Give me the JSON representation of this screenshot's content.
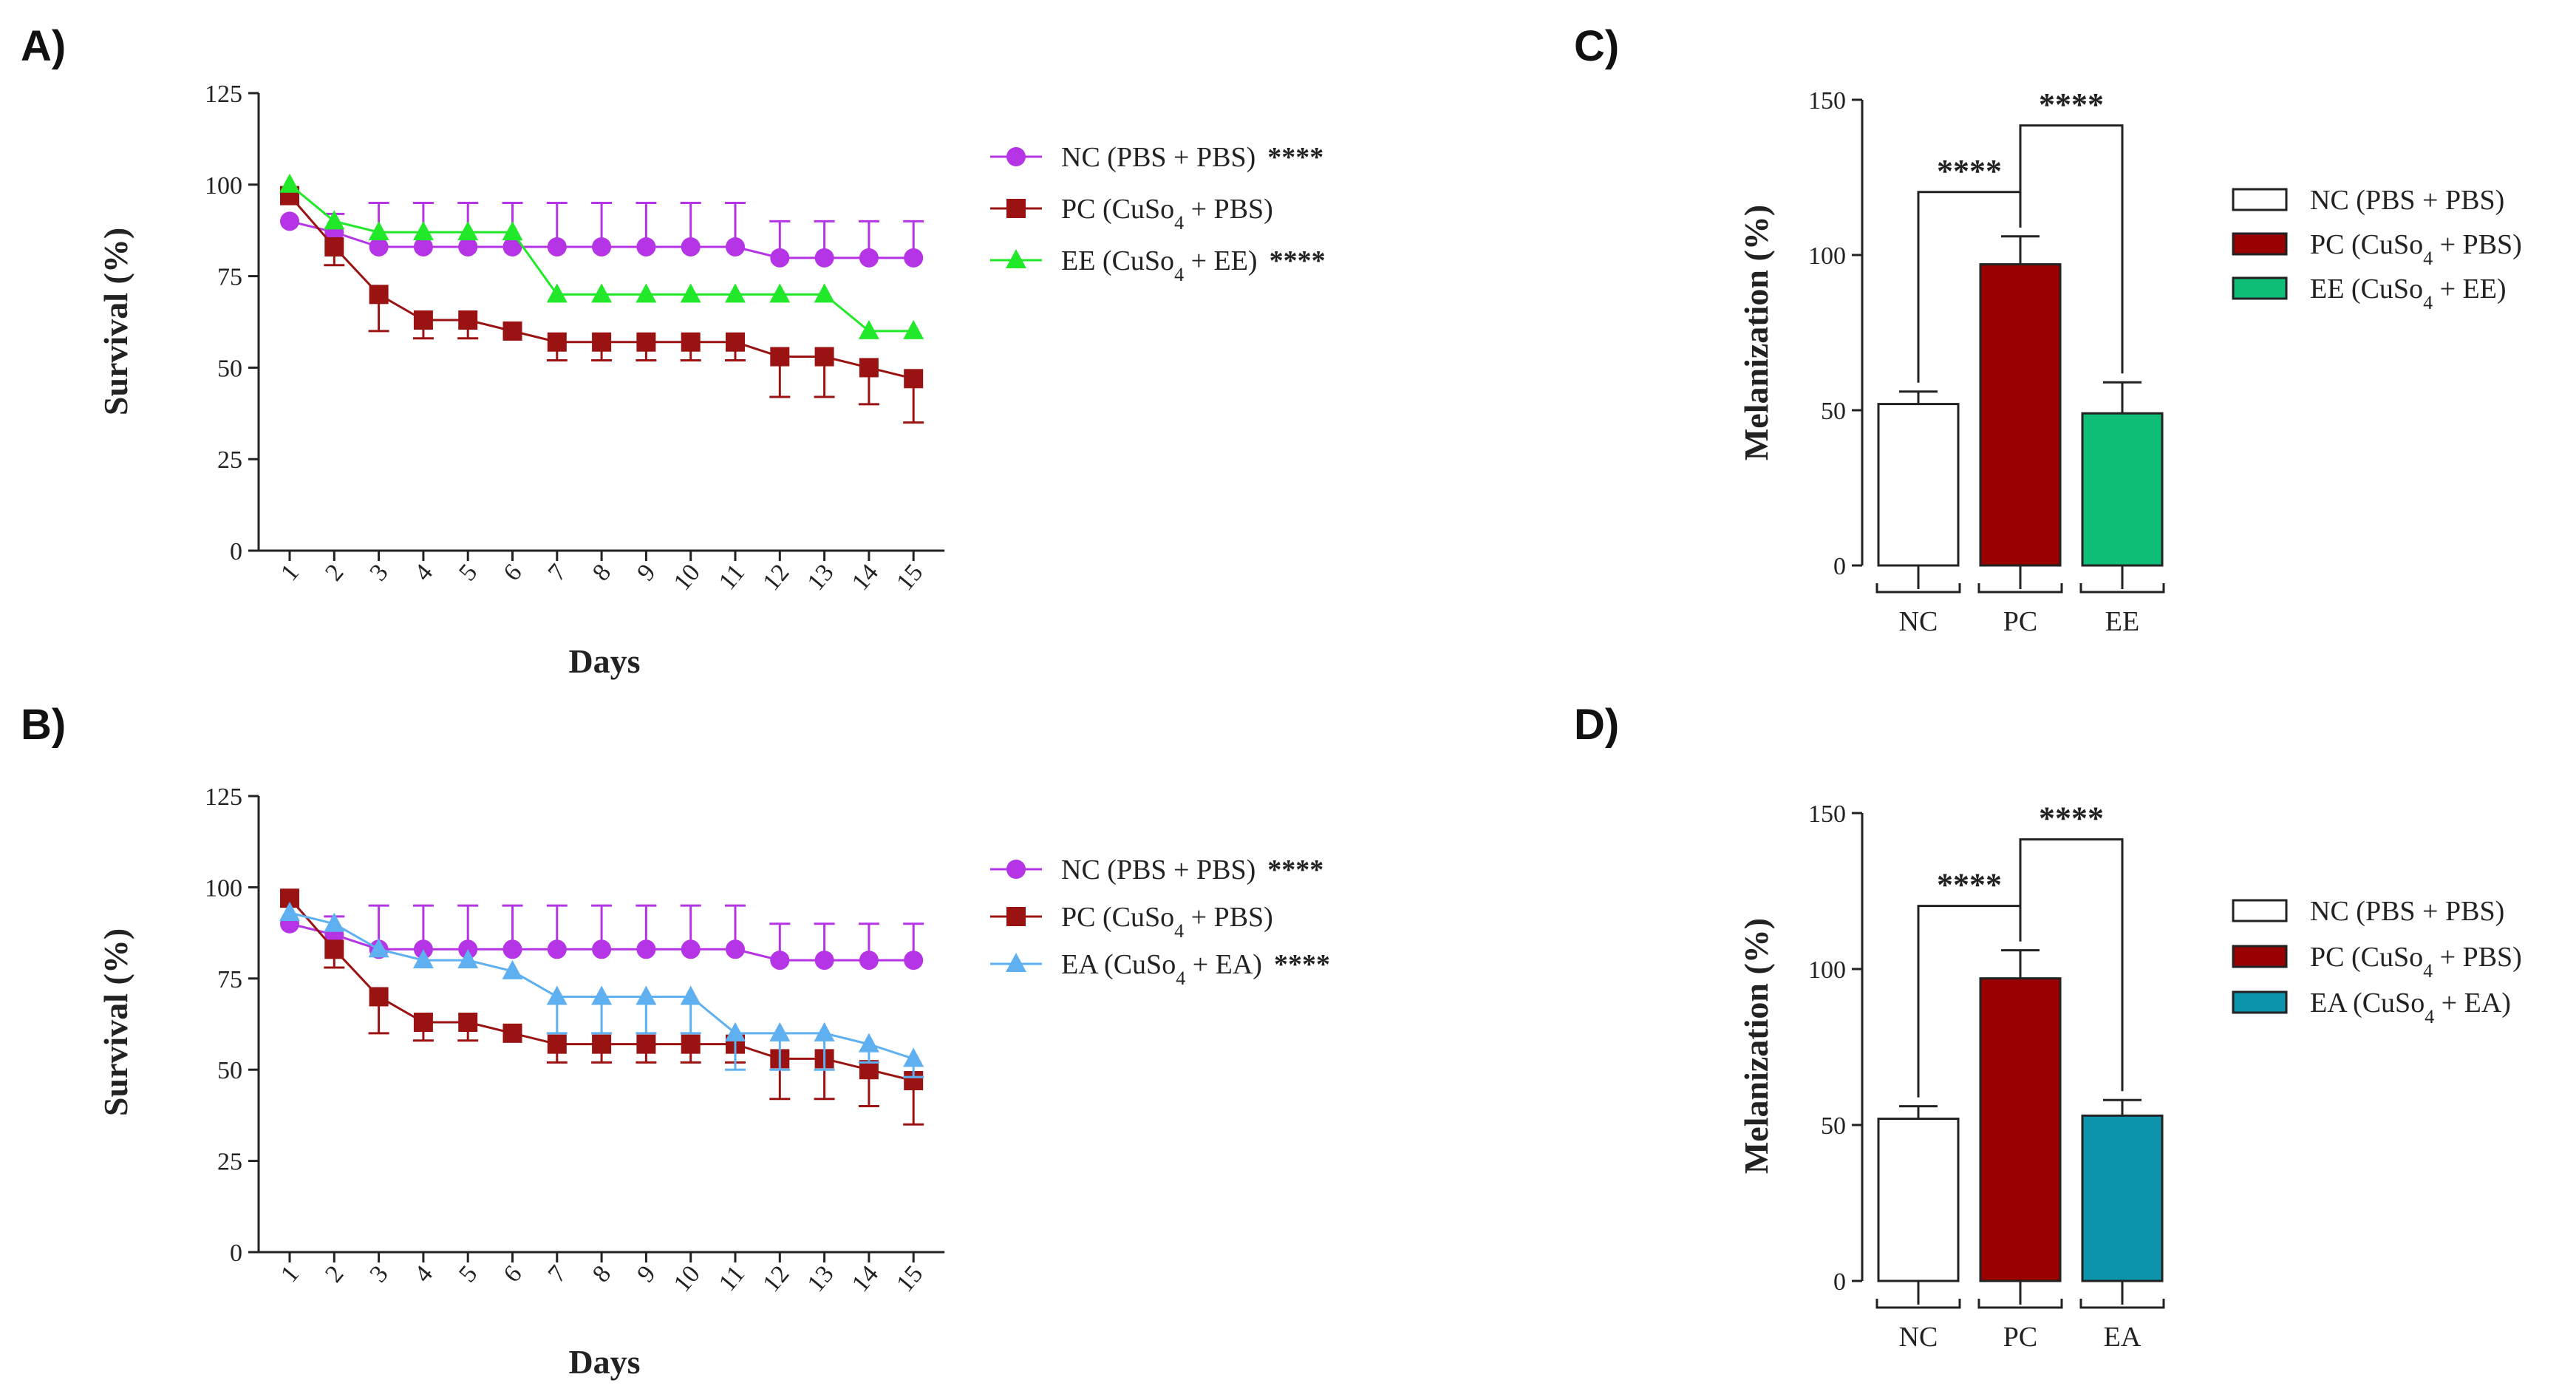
{
  "chart_data": [
    {
      "panel": "A)",
      "type": "line",
      "xlabel": "Days",
      "ylabel": "Survival (%)",
      "ylim": [
        0,
        125
      ],
      "yticks": [
        "0",
        "25",
        "50",
        "75",
        "100",
        "125"
      ],
      "categories": [
        "1",
        "2",
        "3",
        "4",
        "5",
        "6",
        "7",
        "8",
        "9",
        "10",
        "11",
        "12",
        "13",
        "14",
        "15"
      ],
      "series": [
        {
          "key": "nc",
          "name": "NC (PBS + PBS)",
          "sig": "****",
          "color": "#b434e6",
          "marker": "circle",
          "values": [
            90,
            87,
            83,
            83,
            83,
            83,
            83,
            83,
            83,
            83,
            83,
            80,
            80,
            80,
            80
          ],
          "err": [
            0,
            5,
            12,
            12,
            12,
            12,
            12,
            12,
            12,
            12,
            12,
            10,
            10,
            10,
            10
          ]
        },
        {
          "key": "pc",
          "name": "PC (CuSo",
          "sub": "4",
          "tail": " + PBS)",
          "sig": "",
          "color": "#9b1212",
          "marker": "square",
          "values": [
            97,
            83,
            70,
            63,
            63,
            60,
            57,
            57,
            57,
            57,
            57,
            53,
            53,
            50,
            47
          ],
          "err": [
            0,
            5,
            10,
            5,
            5,
            0,
            5,
            5,
            5,
            5,
            5,
            11,
            11,
            10,
            12
          ]
        },
        {
          "key": "ee",
          "name": "EE (CuSo",
          "sub": "4",
          "tail": " + EE)",
          "sig": "****",
          "color": "#22e82a",
          "marker": "triangle",
          "values": [
            100,
            90,
            87,
            87,
            87,
            87,
            70,
            70,
            70,
            70,
            70,
            70,
            70,
            60,
            60
          ],
          "err": [
            0,
            0,
            0,
            0,
            0,
            0,
            0,
            0,
            0,
            0,
            0,
            0,
            0,
            0,
            0
          ]
        }
      ]
    },
    {
      "panel": "B)",
      "type": "line",
      "xlabel": "Days",
      "ylabel": "Survival (%)",
      "ylim": [
        0,
        125
      ],
      "yticks": [
        "0",
        "25",
        "50",
        "75",
        "100",
        "125"
      ],
      "categories": [
        "1",
        "2",
        "3",
        "4",
        "5",
        "6",
        "7",
        "8",
        "9",
        "10",
        "11",
        "12",
        "13",
        "14",
        "15"
      ],
      "series": [
        {
          "key": "nc",
          "name": "NC (PBS + PBS)",
          "sig": "****",
          "color": "#b434e6",
          "marker": "circle",
          "values": [
            90,
            87,
            83,
            83,
            83,
            83,
            83,
            83,
            83,
            83,
            83,
            80,
            80,
            80,
            80
          ],
          "err": [
            0,
            5,
            12,
            12,
            12,
            12,
            12,
            12,
            12,
            12,
            12,
            10,
            10,
            10,
            10
          ]
        },
        {
          "key": "pc",
          "name": "PC (CuSo",
          "sub": "4",
          "tail": " + PBS)",
          "sig": "",
          "color": "#9b1212",
          "marker": "square",
          "values": [
            97,
            83,
            70,
            63,
            63,
            60,
            57,
            57,
            57,
            57,
            57,
            53,
            53,
            50,
            47
          ],
          "err": [
            0,
            5,
            10,
            5,
            5,
            0,
            5,
            5,
            5,
            5,
            5,
            11,
            11,
            10,
            12
          ]
        },
        {
          "key": "ea",
          "name": "EA (CuSo",
          "sub": "4",
          "tail": " + EA)",
          "sig": "****",
          "color": "#5fb0f0",
          "marker": "triangle",
          "values": [
            93,
            90,
            83,
            80,
            80,
            77,
            70,
            70,
            70,
            70,
            60,
            60,
            60,
            57,
            53
          ],
          "err": [
            0,
            0,
            0,
            0,
            0,
            0,
            10,
            10,
            10,
            10,
            10,
            10,
            10,
            5,
            5
          ]
        }
      ]
    },
    {
      "panel": "C)",
      "type": "bar",
      "ylabel": "Melanization  (%)",
      "ylim": [
        0,
        150
      ],
      "yticks": [
        "0",
        "50",
        "100",
        "150"
      ],
      "categories": [
        "NC",
        "PC",
        "EE"
      ],
      "values": [
        52,
        97,
        49
      ],
      "err": [
        4,
        9,
        10
      ],
      "colors": [
        "#ffffff",
        "#990000",
        "#0fbf78"
      ],
      "legend": [
        {
          "name": "NC (PBS + PBS)",
          "sub": "",
          "tail": ""
        },
        {
          "name": "PC (CuSo",
          "sub": "4",
          "tail": " + PBS)"
        },
        {
          "name": "EE (CuSo",
          "sub": "4",
          "tail": " + EE)"
        }
      ],
      "significance": [
        {
          "from": 0,
          "to": 1,
          "label": "****"
        },
        {
          "from": 1,
          "to": 2,
          "label": "****"
        }
      ]
    },
    {
      "panel": "D)",
      "type": "bar",
      "ylabel": "Melanization  (%)",
      "ylim": [
        0,
        150
      ],
      "yticks": [
        "0",
        "50",
        "100",
        "150"
      ],
      "categories": [
        "NC",
        "PC",
        "EA"
      ],
      "values": [
        52,
        97,
        53
      ],
      "err": [
        4,
        9,
        5
      ],
      "colors": [
        "#ffffff",
        "#990000",
        "#0d94ad"
      ],
      "legend": [
        {
          "name": "NC (PBS + PBS)",
          "sub": "",
          "tail": ""
        },
        {
          "name": "PC (CuSo",
          "sub": "4",
          "tail": " + PBS)"
        },
        {
          "name": "EA (CuSo",
          "sub": "4",
          "tail": " + EA)"
        }
      ],
      "significance": [
        {
          "from": 0,
          "to": 1,
          "label": "****"
        },
        {
          "from": 1,
          "to": 2,
          "label": "****"
        }
      ]
    }
  ]
}
